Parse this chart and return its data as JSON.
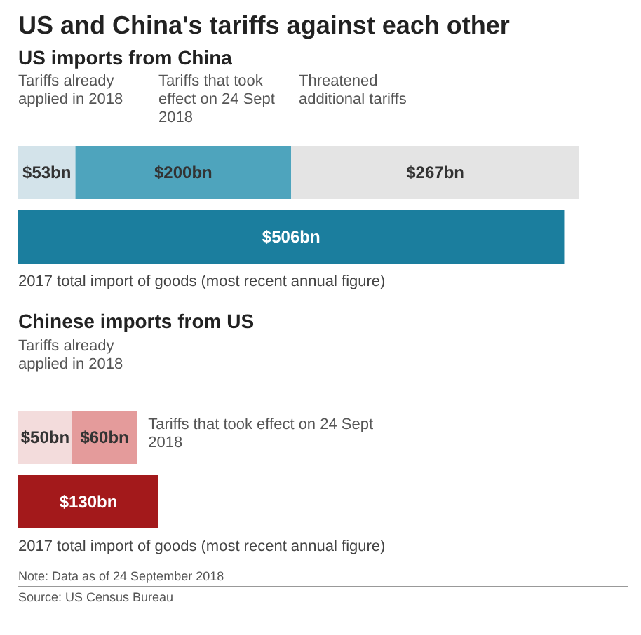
{
  "chart_data": [
    {
      "type": "bar",
      "orientation": "horizontal",
      "stacked": true,
      "title": "US and China's tariffs against each other",
      "subtitle": "US imports from China",
      "categories": [
        null,
        null
      ],
      "legend": false,
      "series": [
        {
          "name": "Tariffs already applied in 2018",
          "color": "#d3e3ea",
          "values": [
            53,
            null
          ],
          "value_labels": [
            "$53bn",
            null
          ]
        },
        {
          "name": "Tariffs that took effect on 24 Sept 2018",
          "color": "#4ea4bd",
          "values": [
            200,
            null
          ],
          "value_labels": [
            "$200bn",
            null
          ]
        },
        {
          "name": "Threatened additional tariffs",
          "color": "#e4e4e4",
          "values": [
            267,
            null
          ],
          "value_labels": [
            "$267bn",
            null
          ]
        },
        {
          "name": "2017 total import of goods (most recent annual figure)",
          "color": "#1b7e9e",
          "values": [
            null,
            506
          ],
          "value_labels": [
            null,
            "$506bn"
          ]
        }
      ]
    },
    {
      "type": "bar",
      "orientation": "horizontal",
      "stacked": true,
      "title": "Chinese imports from US",
      "categories": [
        null,
        null
      ],
      "legend": false,
      "series": [
        {
          "name": "Tariffs already applied in 2018",
          "color": "#f3dcdc",
          "values": [
            50,
            null
          ],
          "value_labels": [
            "$50bn",
            null
          ]
        },
        {
          "name": "Tariffs that took effect on 24 Sept 2018",
          "color": "#e49b9b",
          "values": [
            60,
            null
          ],
          "value_labels": [
            "$60bn",
            null
          ]
        },
        {
          "name": "2017 total import of goods (most recent annual figure)",
          "color": "#a3191b",
          "values": [
            null,
            130
          ],
          "value_labels": [
            null,
            "$130bn"
          ]
        }
      ],
      "annotations": [
        "Note: Data as of 24 September 2018",
        "Source: US Census Bureau"
      ]
    }
  ]
}
